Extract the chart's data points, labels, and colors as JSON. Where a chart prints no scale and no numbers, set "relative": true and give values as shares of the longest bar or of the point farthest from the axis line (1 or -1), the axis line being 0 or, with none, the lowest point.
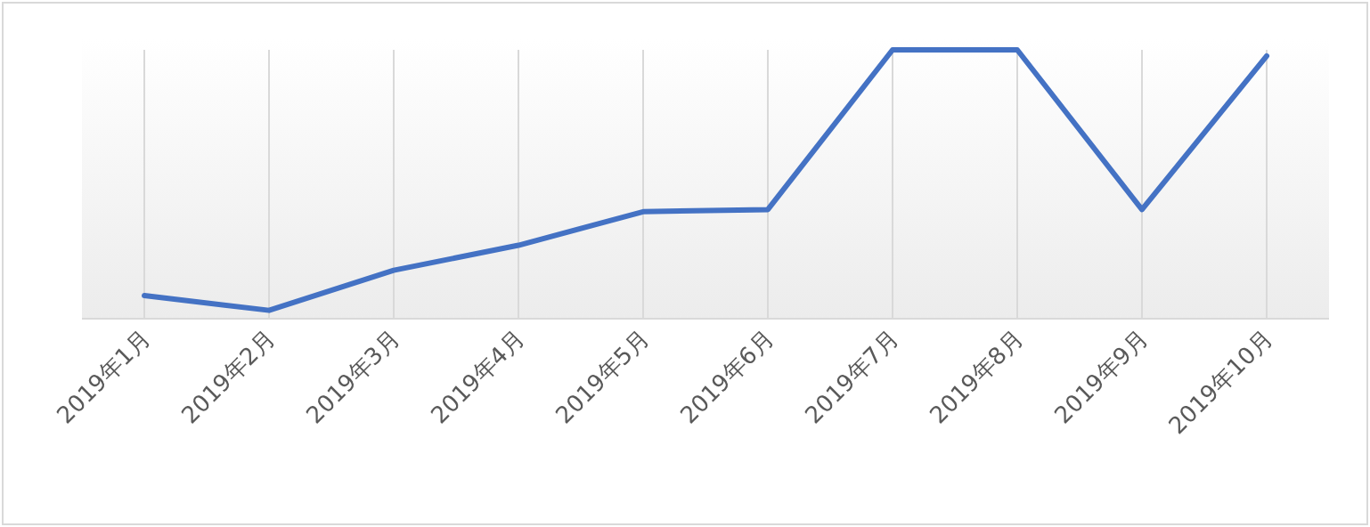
{
  "chart_data": {
    "type": "line",
    "relative": true,
    "grid": "x",
    "marker": "none",
    "line_style": "solid",
    "categories": [
      "2019年1月",
      "2019年2月",
      "2019年3月",
      "2019年4月",
      "2019年5月",
      "2019年6月",
      "2019年7月",
      "2019年8月",
      "2019年9月",
      "2019年10月"
    ],
    "series": [
      {
        "color": "#4472c4",
        "values": [
          0.086,
          0.031,
          0.18,
          0.273,
          0.398,
          0.406,
          1,
          1,
          0.406,
          0.977
        ]
      }
    ]
  }
}
